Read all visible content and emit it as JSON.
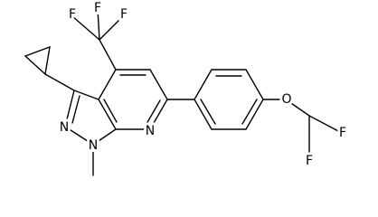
{
  "atoms": {
    "trifluoromethyl": [
      "F",
      "F",
      "F"
    ],
    "ring_nitrogens": [
      "N",
      "N",
      "N"
    ],
    "ether_oxygen": "O",
    "difluoromethyl": [
      "F",
      "F"
    ]
  }
}
